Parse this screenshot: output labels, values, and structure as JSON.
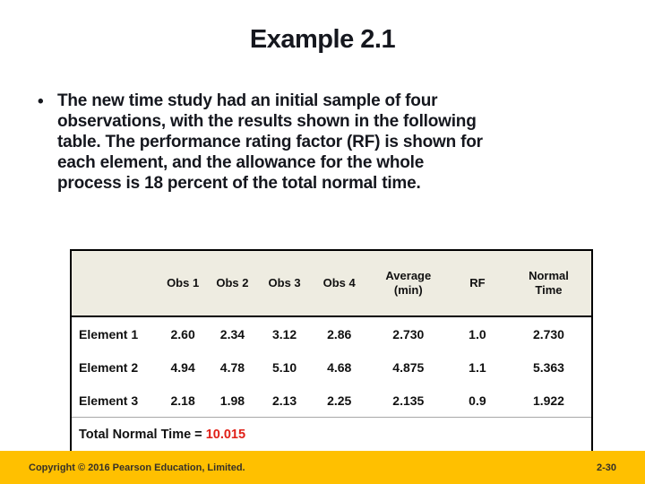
{
  "slide": {
    "title": "Example 2.1",
    "bullet_glyph": "•",
    "paragraph_lines": [
      "The new time study had an initial sample of four",
      "observations, with the results shown in the following",
      "table. The performance rating factor (RF) is shown for",
      "each element, and the allowance for the whole",
      "process is 18 percent of the total normal time."
    ]
  },
  "table": {
    "columns": [
      "",
      "Obs 1",
      "Obs 2",
      "Obs 3",
      "Obs 4",
      "Average\n(min)",
      "RF",
      "Normal\nTime"
    ],
    "rows": [
      {
        "label": "Element 1",
        "values": [
          "2.60",
          "2.34",
          "3.12",
          "2.86",
          "2.730",
          "1.0",
          "2.730"
        ]
      },
      {
        "label": "Element 2",
        "values": [
          "4.94",
          "4.78",
          "5.10",
          "4.68",
          "4.875",
          "1.1",
          "5.363"
        ]
      },
      {
        "label": "Element 3",
        "values": [
          "2.18",
          "1.98",
          "2.13",
          "2.25",
          "2.135",
          "0.9",
          "1.922"
        ]
      }
    ],
    "total_label": "Total Normal Time = ",
    "total_value": "10.015"
  },
  "footer": {
    "copyright": "Copyright © 2016 Pearson Education, Limited.",
    "page_number": "2-30"
  },
  "colors": {
    "table_header_bg": "#EEECE1",
    "footer_bg": "#FFC000",
    "total_value_red": "#E02018",
    "text_dark": "#15171E",
    "border_black": "#000000"
  }
}
